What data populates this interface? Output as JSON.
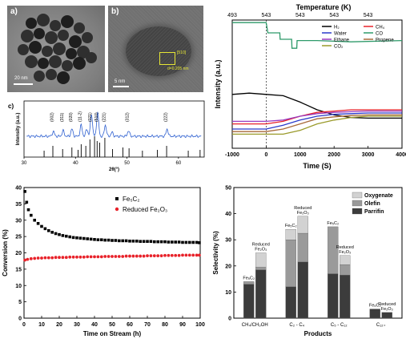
{
  "panels": {
    "a": {
      "label": "a)",
      "scale_bar": "20 nm"
    },
    "b": {
      "label": "b)",
      "scale_bar": "5 nm",
      "lattice_text": [
        "[510]",
        "d=0.205 nm"
      ]
    },
    "c": {
      "label": "c)"
    }
  },
  "chart_data": [
    {
      "id": "xrd",
      "type": "line",
      "xlabel": "2θ(°)",
      "ylabel": "Intensity (a.u.)",
      "xlim": [
        30,
        65
      ],
      "xticks": [
        30,
        40,
        50,
        60
      ],
      "grid": false,
      "peaks": [
        {
          "label": "(002)",
          "x": 35.7
        },
        {
          "label": "(311)",
          "x": 37.6
        },
        {
          "label": "(020)",
          "x": 39.3
        },
        {
          "label": "(11-2)",
          "x": 41.1
        },
        {
          "label": "(021)",
          "x": 43.1
        },
        {
          "label": "(510)",
          "x": 44.3
        },
        {
          "label": "(221)",
          "x": 45.8
        },
        {
          "label": "(312)",
          "x": 50.3
        },
        {
          "label": "(222)",
          "x": 57.8
        }
      ],
      "reference_lines_x": [
        33.9,
        35.6,
        37.5,
        39.3,
        40.5,
        41.1,
        42.0,
        42.8,
        43.7,
        44.2,
        44.7,
        45.7,
        47.2,
        49.2,
        50.4,
        53.0,
        55.9,
        57.7,
        61.9,
        64.2
      ]
    },
    {
      "id": "tpsr",
      "type": "line",
      "xlabel": "Time (S)",
      "ylabel": "Intensity (a.u.)",
      "top_xlabel": "Temperature (K)",
      "xlim": [
        -1000,
        4000
      ],
      "xticks": [
        -1000,
        0,
        1000,
        2000,
        3000,
        4000
      ],
      "top_ticks": [
        "493",
        "543",
        "543",
        "543",
        "543"
      ],
      "legend_position": "top-right",
      "legend": [
        {
          "name": "H₂",
          "color": "#000000"
        },
        {
          "name": "CH₄",
          "color": "#e8222a"
        },
        {
          "name": "Water",
          "color": "#2b3acb"
        },
        {
          "name": "CO",
          "color": "#2e9a6a"
        },
        {
          "name": "Ethane",
          "color": "#9b3bbf"
        },
        {
          "name": "Propene",
          "color": "#a86a3a"
        },
        {
          "name": "CO₂",
          "color": "#9a9a2a"
        }
      ],
      "series": [
        {
          "name": "CO",
          "color": "#2e9a6a",
          "x": [
            -1000,
            0,
            50,
            400,
            410,
            750,
            760,
            900,
            910,
            1500,
            2500,
            4000
          ],
          "y": [
            0.98,
            0.98,
            0.9,
            0.9,
            0.85,
            0.85,
            0.78,
            0.78,
            0.84,
            0.84,
            0.83,
            0.84
          ]
        },
        {
          "name": "H₂",
          "color": "#000000",
          "x": [
            -1000,
            -500,
            0,
            500,
            1000,
            1500,
            2000,
            2500,
            3000,
            4000
          ],
          "y": [
            0.42,
            0.43,
            0.42,
            0.41,
            0.36,
            0.3,
            0.26,
            0.24,
            0.235,
            0.235
          ]
        },
        {
          "name": "CH₄",
          "color": "#e8222a",
          "x": [
            -1000,
            0,
            500,
            1000,
            1500,
            2000,
            2500,
            3000,
            4000
          ],
          "y": [
            0.19,
            0.19,
            0.21,
            0.25,
            0.28,
            0.29,
            0.3,
            0.3,
            0.3
          ]
        },
        {
          "name": "Water",
          "color": "#2b3acb",
          "x": [
            -1000,
            0,
            500,
            1000,
            1500,
            2000,
            2500,
            3000,
            4000
          ],
          "y": [
            0.15,
            0.15,
            0.18,
            0.22,
            0.25,
            0.265,
            0.27,
            0.275,
            0.275
          ]
        },
        {
          "name": "Ethane",
          "color": "#9b3bbf",
          "x": [
            -1000,
            0,
            500,
            1000,
            1500,
            2000,
            2500,
            3000,
            4000
          ],
          "y": [
            0.21,
            0.21,
            0.22,
            0.25,
            0.27,
            0.28,
            0.285,
            0.29,
            0.29
          ]
        },
        {
          "name": "Propene",
          "color": "#a86a3a",
          "x": [
            -1000,
            0,
            500,
            1000,
            1500,
            2000,
            2500,
            3000,
            4000
          ],
          "y": [
            0.13,
            0.13,
            0.15,
            0.19,
            0.23,
            0.245,
            0.255,
            0.26,
            0.26
          ]
        },
        {
          "name": "CO₂",
          "color": "#9a9a2a",
          "x": [
            -1000,
            0,
            500,
            1000,
            1500,
            2000,
            2500,
            3000,
            4000
          ],
          "y": [
            0.11,
            0.11,
            0.11,
            0.14,
            0.19,
            0.22,
            0.24,
            0.25,
            0.25
          ]
        }
      ]
    },
    {
      "id": "conversion",
      "type": "scatter",
      "xlabel": "Time on Stream (h)",
      "ylabel": "Conversion (%)",
      "xlim": [
        0,
        100
      ],
      "ylim": [
        0,
        40
      ],
      "xticks": [
        0,
        10,
        20,
        30,
        40,
        50,
        60,
        70,
        80,
        90,
        100
      ],
      "yticks": [
        0,
        5,
        10,
        15,
        20,
        25,
        30,
        35,
        40
      ],
      "legend_position": "top-right",
      "series": [
        {
          "name": "Fe₅C₂",
          "color": "#000000",
          "marker": "square",
          "x": [
            0.5,
            1.5,
            2.5,
            4,
            6,
            8,
            10,
            12,
            14,
            16,
            18,
            20,
            22,
            24,
            26,
            28,
            30,
            32,
            34,
            36,
            38,
            40,
            42,
            44,
            46,
            48,
            50,
            52,
            54,
            56,
            58,
            60,
            62,
            64,
            66,
            68,
            70,
            72,
            74,
            76,
            78,
            80,
            82,
            84,
            86,
            88,
            90,
            92,
            94,
            96,
            98,
            99.5
          ],
          "y": [
            38.8,
            35.5,
            33.2,
            31.5,
            30.0,
            29.0,
            28.1,
            27.4,
            26.8,
            26.3,
            25.9,
            25.6,
            25.3,
            25.1,
            24.9,
            24.7,
            24.6,
            24.5,
            24.4,
            24.3,
            24.2,
            24.1,
            24.0,
            24.0,
            23.9,
            23.9,
            23.8,
            23.8,
            23.7,
            23.7,
            23.7,
            23.6,
            23.6,
            23.6,
            23.5,
            23.5,
            23.5,
            23.5,
            23.4,
            23.4,
            23.4,
            23.4,
            23.3,
            23.3,
            23.3,
            23.3,
            23.2,
            23.2,
            23.2,
            23.2,
            23.2,
            23.1
          ]
        },
        {
          "name": "Reduced Fe₂O₃",
          "color": "#e8222a",
          "marker": "circle",
          "x": [
            0.5,
            2,
            4,
            6,
            8,
            10,
            12,
            14,
            16,
            18,
            20,
            22,
            24,
            26,
            28,
            30,
            32,
            34,
            36,
            38,
            40,
            42,
            44,
            46,
            48,
            50,
            52,
            54,
            56,
            58,
            60,
            62,
            64,
            66,
            68,
            70,
            72,
            74,
            76,
            78,
            80,
            82,
            84,
            86,
            88,
            90,
            92,
            94,
            96,
            98,
            99.5
          ],
          "y": [
            17.8,
            18.0,
            18.2,
            18.3,
            18.4,
            18.4,
            18.5,
            18.5,
            18.5,
            18.6,
            18.6,
            18.6,
            18.6,
            18.7,
            18.7,
            18.7,
            18.7,
            18.7,
            18.8,
            18.8,
            18.8,
            18.8,
            18.8,
            18.9,
            18.9,
            18.9,
            18.9,
            18.9,
            18.9,
            19.0,
            19.0,
            19.0,
            19.0,
            19.0,
            19.0,
            19.1,
            19.1,
            19.1,
            19.1,
            19.1,
            19.2,
            19.2,
            19.2,
            19.2,
            19.2,
            19.3,
            19.3,
            19.3,
            19.3,
            19.3,
            19.3
          ]
        }
      ]
    },
    {
      "id": "selectivity",
      "type": "bar",
      "stacked": true,
      "xlabel": "Products",
      "ylabel": "Selectivity (%)",
      "ylim": [
        0,
        50
      ],
      "yticks": [
        0,
        10,
        20,
        30,
        40,
        50
      ],
      "legend_position": "top-right",
      "categories": [
        "CH₄/CH₃OH",
        "C₂ - C₄",
        "C₅ - C₁₂",
        "C₁₂₊"
      ],
      "bar_labels": [
        "Fe₅C₂",
        "Reduced Fe₂O₃"
      ],
      "series": [
        {
          "name": "Parrifin",
          "color": "#3c3c3c",
          "values": [
            [
              13,
              18.5
            ],
            [
              12,
              21.5
            ],
            [
              17,
              16.5
            ],
            [
              3.5,
              2.2
            ]
          ]
        },
        {
          "name": "Olefin",
          "color": "#9a9a9a",
          "values": [
            [
              1,
              1
            ],
            [
              18,
              11
            ],
            [
              18,
              4
            ],
            [
              0,
              0
            ]
          ]
        },
        {
          "name": "Oxygenate",
          "color": "#d2d2d2",
          "values": [
            [
              0,
              5.5
            ],
            [
              4,
              6.5
            ],
            [
              0,
              3.5
            ],
            [
              0,
              0
            ]
          ]
        }
      ]
    }
  ]
}
